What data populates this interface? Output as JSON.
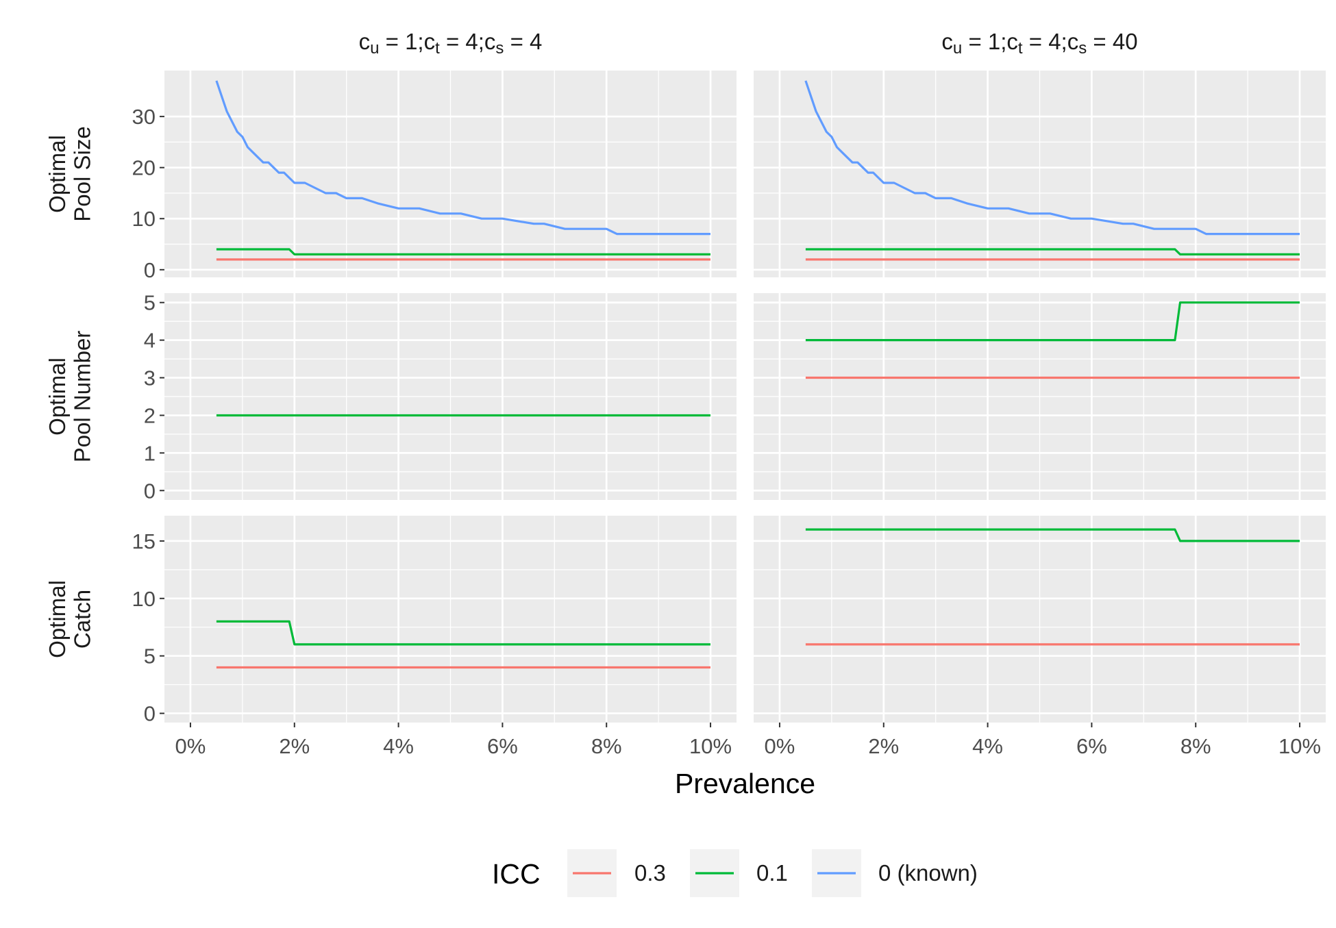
{
  "chart_data": {
    "type": "line",
    "xlabel": "Prevalence",
    "x_tick_labels": [
      "0%",
      "2%",
      "4%",
      "6%",
      "8%",
      "10%"
    ],
    "x_ticks": [
      0,
      0.02,
      0.04,
      0.06,
      0.08,
      0.1
    ],
    "xlim": [
      -0.005,
      0.105
    ],
    "grid": true,
    "legend": {
      "title": "ICC",
      "position": "bottom",
      "entries": [
        {
          "label": "0.3",
          "color": "#F8766D"
        },
        {
          "label": "0.1",
          "color": "#00BA38"
        },
        {
          "label": "0 (known)",
          "color": "#619CFF"
        }
      ]
    },
    "columns": [
      {
        "strip": {
          "cu": "1",
          "ct": "4",
          "cs": "4"
        }
      },
      {
        "strip": {
          "cu": "1",
          "ct": "4",
          "cs": "40"
        }
      }
    ],
    "rows": [
      {
        "ylabel": [
          "Optimal",
          "Pool Size"
        ],
        "ylim": [
          -1.5,
          39
        ],
        "y_ticks": [
          0,
          10,
          20,
          30
        ],
        "y_tick_labels": [
          "0",
          "10",
          "20",
          "30"
        ]
      },
      {
        "ylabel": [
          "Optimal",
          "Pool Number"
        ],
        "ylim": [
          -0.25,
          5.25
        ],
        "y_ticks": [
          0,
          1,
          2,
          3,
          4,
          5
        ],
        "y_tick_labels": [
          "0",
          "1",
          "2",
          "3",
          "4",
          "5"
        ]
      },
      {
        "ylabel": [
          "Optimal",
          "Catch"
        ],
        "ylim": [
          -0.8,
          17.2
        ],
        "y_ticks": [
          0,
          5,
          10,
          15
        ],
        "y_tick_labels": [
          "0",
          "5",
          "10",
          "15"
        ]
      }
    ],
    "panels": [
      {
        "row": 0,
        "col": 0,
        "series": [
          {
            "icc": "0.3",
            "x": [
              0.005,
              0.1
            ],
            "y": [
              2,
              2
            ]
          },
          {
            "icc": "0.1",
            "x": [
              0.005,
              0.019,
              0.02,
              0.1
            ],
            "y": [
              4,
              4,
              3,
              3
            ]
          },
          {
            "icc": "0 (known)",
            "x": [
              0.005,
              0.006,
              0.007,
              0.008,
              0.009,
              0.01,
              0.011,
              0.012,
              0.013,
              0.014,
              0.015,
              0.016,
              0.017,
              0.018,
              0.019,
              0.02,
              0.022,
              0.024,
              0.026,
              0.028,
              0.03,
              0.033,
              0.036,
              0.04,
              0.044,
              0.048,
              0.052,
              0.056,
              0.06,
              0.066,
              0.068,
              0.072,
              0.076,
              0.08,
              0.082,
              0.086,
              0.09,
              0.095,
              0.1
            ],
            "y": [
              37,
              34,
              31,
              29,
              27,
              26,
              24,
              23,
              22,
              21,
              21,
              20,
              19,
              19,
              18,
              17,
              17,
              16,
              15,
              15,
              14,
              14,
              13,
              12,
              12,
              11,
              11,
              10,
              10,
              9,
              9,
              8,
              8,
              8,
              7,
              7,
              7,
              7,
              7
            ]
          }
        ]
      },
      {
        "row": 0,
        "col": 1,
        "series": [
          {
            "icc": "0.3",
            "x": [
              0.005,
              0.1
            ],
            "y": [
              2,
              2
            ]
          },
          {
            "icc": "0.1",
            "x": [
              0.005,
              0.076,
              0.077,
              0.1
            ],
            "y": [
              4,
              4,
              3,
              3
            ]
          },
          {
            "icc": "0 (known)",
            "x": [
              0.005,
              0.006,
              0.007,
              0.008,
              0.009,
              0.01,
              0.011,
              0.012,
              0.013,
              0.014,
              0.015,
              0.016,
              0.017,
              0.018,
              0.019,
              0.02,
              0.022,
              0.024,
              0.026,
              0.028,
              0.03,
              0.033,
              0.036,
              0.04,
              0.044,
              0.048,
              0.052,
              0.056,
              0.06,
              0.066,
              0.068,
              0.072,
              0.076,
              0.08,
              0.082,
              0.086,
              0.09,
              0.095,
              0.1
            ],
            "y": [
              37,
              34,
              31,
              29,
              27,
              26,
              24,
              23,
              22,
              21,
              21,
              20,
              19,
              19,
              18,
              17,
              17,
              16,
              15,
              15,
              14,
              14,
              13,
              12,
              12,
              11,
              11,
              10,
              10,
              9,
              9,
              8,
              8,
              8,
              7,
              7,
              7,
              7,
              7
            ]
          }
        ]
      },
      {
        "row": 1,
        "col": 0,
        "series": [
          {
            "icc": "0.1",
            "x": [
              0.005,
              0.1
            ],
            "y": [
              2,
              2
            ]
          }
        ]
      },
      {
        "row": 1,
        "col": 1,
        "series": [
          {
            "icc": "0.3",
            "x": [
              0.005,
              0.1
            ],
            "y": [
              3,
              3
            ]
          },
          {
            "icc": "0.1",
            "x": [
              0.005,
              0.076,
              0.077,
              0.1
            ],
            "y": [
              4,
              4,
              5,
              5
            ]
          }
        ]
      },
      {
        "row": 2,
        "col": 0,
        "series": [
          {
            "icc": "0.3",
            "x": [
              0.005,
              0.1
            ],
            "y": [
              4,
              4
            ]
          },
          {
            "icc": "0.1",
            "x": [
              0.005,
              0.019,
              0.02,
              0.1
            ],
            "y": [
              8,
              8,
              6,
              6
            ]
          }
        ]
      },
      {
        "row": 2,
        "col": 1,
        "series": [
          {
            "icc": "0.3",
            "x": [
              0.005,
              0.1
            ],
            "y": [
              6,
              6
            ]
          },
          {
            "icc": "0.1",
            "x": [
              0.005,
              0.076,
              0.077,
              0.1
            ],
            "y": [
              16,
              16,
              15,
              15
            ]
          }
        ]
      }
    ]
  }
}
